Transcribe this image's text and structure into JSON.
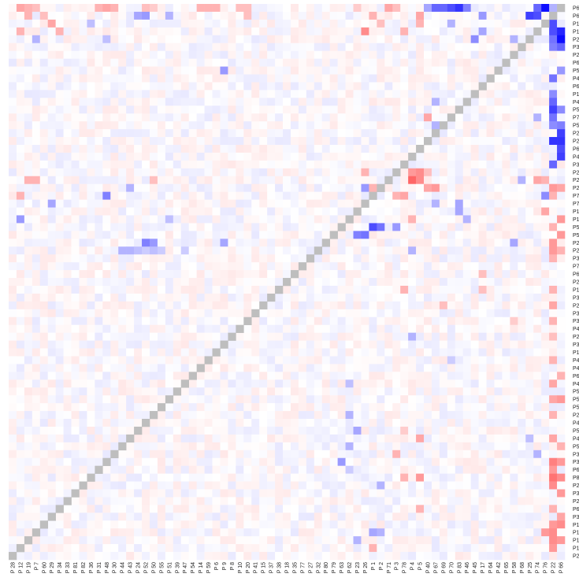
{
  "chart_data": {
    "type": "heatmap",
    "title": "",
    "xlabel": "",
    "ylabel": "",
    "legend": "none",
    "grid": false,
    "value_range": [
      -1,
      1
    ],
    "colors": {
      "negative": "#0000ff",
      "zero": "#ffffff",
      "positive": "#ff0000",
      "diagonal": "#bebebe"
    },
    "x_tick_labels": [
      "P 28",
      "P 12",
      "P 19",
      "P 7",
      "P 60",
      "P 29",
      "P 34",
      "P 33",
      "P 81",
      "P 82",
      "P 36",
      "P 31",
      "P 48",
      "P 30",
      "P 44",
      "P 43",
      "P 24",
      "P 52",
      "P 50",
      "P 55",
      "P 51",
      "P 39",
      "P 47",
      "P 54",
      "P 14",
      "P 59",
      "P 6",
      "P 9",
      "P 8",
      "P 10",
      "P 20",
      "P 41",
      "P 15",
      "P 37",
      "P 38",
      "P 18",
      "P 35",
      "P 77",
      "P 27",
      "P 32",
      "P 80",
      "P 79",
      "P 63",
      "P 62",
      "P 23",
      "P 26",
      "P 1",
      "P 2",
      "P 71",
      "P 3",
      "P 78",
      "P 4",
      "P 5",
      "P 40",
      "P 67",
      "P 69",
      "P 70",
      "P 83",
      "P 46",
      "P 45",
      "P 17",
      "P 64",
      "P 42",
      "P 65",
      "P 58",
      "P 68",
      "P 25",
      "P 74",
      "P 76",
      "P 22",
      "P 66"
    ],
    "right_tick_labels": [
      "P6",
      "P6",
      "P1",
      "P1",
      "P2",
      "P3",
      "P2",
      "P6",
      "P5",
      "P4",
      "P6",
      "P1",
      "P4",
      "P5",
      "P7",
      "P5",
      "P2",
      "P2",
      "P6",
      "P4",
      "P3",
      "P2",
      "P2",
      "P2",
      "P7",
      "P7",
      "P1",
      "P1",
      "P5",
      "P5",
      "P2",
      "P2",
      "P3",
      "P7",
      "P6",
      "P2",
      "P1",
      "P3",
      "P2",
      "P3",
      "P3",
      "P4",
      "P2",
      "P3",
      "P1",
      "P4",
      "P4",
      "P6",
      "P4",
      "P5",
      "P5",
      "P5",
      "P2",
      "P4",
      "P5",
      "P4",
      "P5",
      "P3",
      "P3",
      "P6",
      "P8",
      "P2",
      "P3",
      "P2",
      "P6",
      "P3",
      "P1",
      "P1",
      "P1",
      "P1",
      "P2"
    ],
    "cells": [
      [
        0,
        1,
        0.35
      ],
      [
        0,
        2,
        0.3
      ],
      [
        0,
        3,
        0.25
      ],
      [
        0,
        11,
        0.3
      ],
      [
        0,
        12,
        0.35
      ],
      [
        0,
        13,
        0.3
      ],
      [
        0,
        17,
        0.25
      ],
      [
        0,
        18,
        0.2
      ],
      [
        0,
        24,
        0.3
      ],
      [
        0,
        25,
        0.3
      ],
      [
        0,
        26,
        0.3
      ],
      [
        0,
        29,
        0.25
      ],
      [
        0,
        30,
        0.25
      ],
      [
        0,
        44,
        0.2
      ],
      [
        0,
        48,
        0.35
      ],
      [
        0,
        49,
        0.25
      ],
      [
        0,
        53,
        -0.35
      ],
      [
        0,
        54,
        -0.6
      ],
      [
        0,
        55,
        -0.6
      ],
      [
        0,
        56,
        -0.7
      ],
      [
        0,
        57,
        -0.8
      ],
      [
        0,
        58,
        -0.5
      ],
      [
        0,
        67,
        -0.6
      ],
      [
        0,
        68,
        -0.95
      ],
      [
        0,
        69,
        -0.3
      ],
      [
        1,
        2,
        0.3
      ],
      [
        1,
        4,
        0.25
      ],
      [
        1,
        16,
        -0.35
      ],
      [
        1,
        17,
        -0.4
      ],
      [
        1,
        20,
        -0.3
      ],
      [
        1,
        30,
        0.25
      ],
      [
        1,
        46,
        0.3
      ],
      [
        1,
        52,
        0.35
      ],
      [
        1,
        60,
        -0.4
      ],
      [
        1,
        66,
        -0.75
      ],
      [
        1,
        67,
        -0.7
      ],
      [
        1,
        69,
        -0.5
      ],
      [
        2,
        5,
        0.35
      ],
      [
        2,
        10,
        -0.25
      ],
      [
        2,
        47,
        0.25
      ],
      [
        2,
        52,
        0.3
      ],
      [
        2,
        56,
        -0.3
      ],
      [
        2,
        68,
        -0.8
      ],
      [
        2,
        69,
        -0.7
      ],
      [
        3,
        1,
        0.3
      ],
      [
        3,
        6,
        0.3
      ],
      [
        3,
        45,
        0.45
      ],
      [
        3,
        50,
        0.3
      ],
      [
        3,
        60,
        -0.35
      ],
      [
        3,
        69,
        -0.7
      ],
      [
        3,
        70,
        -0.85
      ],
      [
        4,
        3,
        -0.3
      ],
      [
        4,
        12,
        -0.25
      ],
      [
        4,
        59,
        -0.45
      ],
      [
        4,
        64,
        -0.3
      ],
      [
        4,
        69,
        -0.55
      ],
      [
        4,
        70,
        -0.95
      ],
      [
        5,
        69,
        -0.5
      ],
      [
        5,
        70,
        -0.6
      ],
      [
        8,
        27,
        -0.4
      ],
      [
        8,
        70,
        -0.4
      ],
      [
        9,
        69,
        -0.55
      ],
      [
        11,
        69,
        -0.45
      ],
      [
        12,
        54,
        -0.3
      ],
      [
        12,
        69,
        -0.6
      ],
      [
        13,
        69,
        -0.75
      ],
      [
        13,
        70,
        -0.45
      ],
      [
        14,
        53,
        0.35
      ],
      [
        14,
        67,
        -0.3
      ],
      [
        14,
        69,
        -0.55
      ],
      [
        15,
        54,
        -0.3
      ],
      [
        15,
        69,
        -0.45
      ],
      [
        15,
        70,
        -0.5
      ],
      [
        16,
        70,
        -0.75
      ],
      [
        17,
        69,
        -0.8
      ],
      [
        17,
        70,
        -0.8
      ],
      [
        18,
        70,
        -0.7
      ],
      [
        19,
        70,
        -0.75
      ],
      [
        20,
        69,
        -0.6
      ],
      [
        21,
        51,
        0.4
      ],
      [
        21,
        52,
        0.45
      ],
      [
        21,
        45,
        0.3
      ],
      [
        21,
        53,
        0.25
      ],
      [
        22,
        2,
        0.3
      ],
      [
        22,
        3,
        0.3
      ],
      [
        22,
        18,
        0.25
      ],
      [
        22,
        51,
        0.6
      ],
      [
        22,
        52,
        0.45
      ],
      [
        22,
        65,
        -0.3
      ],
      [
        22,
        67,
        0.35
      ],
      [
        22,
        68,
        0.3
      ],
      [
        23,
        15,
        -0.3
      ],
      [
        23,
        45,
        -0.4
      ],
      [
        23,
        46,
        0.3
      ],
      [
        23,
        53,
        0.35
      ],
      [
        23,
        54,
        0.4
      ],
      [
        23,
        69,
        0.4
      ],
      [
        23,
        70,
        0.35
      ],
      [
        24,
        1,
        0.3
      ],
      [
        24,
        12,
        -0.5
      ],
      [
        24,
        49,
        0.3
      ],
      [
        24,
        50,
        0.35
      ],
      [
        24,
        68,
        -0.45
      ],
      [
        24,
        69,
        0.3
      ],
      [
        25,
        5,
        -0.35
      ],
      [
        25,
        54,
        -0.3
      ],
      [
        25,
        57,
        -0.35
      ],
      [
        26,
        57,
        -0.35
      ],
      [
        26,
        68,
        0.35
      ],
      [
        27,
        1,
        -0.4
      ],
      [
        27,
        20,
        -0.25
      ],
      [
        27,
        51,
        0.3
      ],
      [
        27,
        58,
        -0.3
      ],
      [
        27,
        70,
        0.4
      ],
      [
        28,
        46,
        -0.7
      ],
      [
        28,
        47,
        -0.55
      ],
      [
        28,
        49,
        -0.4
      ],
      [
        28,
        69,
        0.3
      ],
      [
        29,
        44,
        -0.5
      ],
      [
        29,
        45,
        -0.55
      ],
      [
        29,
        70,
        0.4
      ],
      [
        30,
        17,
        -0.5
      ],
      [
        30,
        18,
        -0.4
      ],
      [
        30,
        27,
        -0.35
      ],
      [
        30,
        64,
        -0.35
      ],
      [
        30,
        69,
        0.4
      ],
      [
        31,
        14,
        -0.3
      ],
      [
        31,
        15,
        -0.3
      ],
      [
        31,
        16,
        -0.25
      ],
      [
        31,
        17,
        -0.2
      ],
      [
        31,
        18,
        -0.25
      ],
      [
        31,
        19,
        -0.2
      ],
      [
        31,
        22,
        -0.2
      ],
      [
        31,
        51,
        -0.3
      ],
      [
        31,
        69,
        0.4
      ],
      [
        31,
        70,
        0.3
      ],
      [
        32,
        69,
        0.3
      ],
      [
        34,
        60,
        0.25
      ],
      [
        36,
        50,
        0.3
      ],
      [
        36,
        60,
        0.25
      ],
      [
        36,
        69,
        0.3
      ],
      [
        38,
        55,
        0.25
      ],
      [
        38,
        69,
        0.35
      ],
      [
        40,
        64,
        0.2
      ],
      [
        40,
        69,
        0.3
      ],
      [
        42,
        51,
        -0.3
      ],
      [
        42,
        69,
        0.25
      ],
      [
        45,
        56,
        -0.2
      ],
      [
        45,
        69,
        0.3
      ],
      [
        47,
        70,
        0.3
      ],
      [
        48,
        43,
        -0.25
      ],
      [
        48,
        69,
        0.35
      ],
      [
        50,
        69,
        0.35
      ],
      [
        50,
        70,
        0.4
      ],
      [
        52,
        43,
        -0.3
      ],
      [
        52,
        69,
        0.3
      ],
      [
        54,
        44,
        -0.35
      ],
      [
        54,
        50,
        0.2
      ],
      [
        55,
        52,
        0.35
      ],
      [
        55,
        66,
        -0.25
      ],
      [
        55,
        69,
        0.35
      ],
      [
        56,
        43,
        -0.3
      ],
      [
        56,
        70,
        0.3
      ],
      [
        57,
        49,
        0.3
      ],
      [
        57,
        67,
        -0.3
      ],
      [
        58,
        42,
        -0.4
      ],
      [
        58,
        69,
        0.5
      ],
      [
        58,
        70,
        0.4
      ],
      [
        59,
        43,
        -0.2
      ],
      [
        59,
        69,
        0.4
      ],
      [
        60,
        50,
        0.3
      ],
      [
        60,
        52,
        0.4
      ],
      [
        60,
        69,
        0.55
      ],
      [
        60,
        70,
        0.45
      ],
      [
        61,
        47,
        -0.3
      ],
      [
        61,
        69,
        0.45
      ],
      [
        62,
        70,
        0.4
      ],
      [
        64,
        52,
        0.3
      ],
      [
        64,
        69,
        0.3
      ],
      [
        65,
        70,
        0.35
      ],
      [
        66,
        69,
        0.4
      ],
      [
        66,
        70,
        0.45
      ],
      [
        67,
        46,
        -0.35
      ],
      [
        67,
        47,
        -0.3
      ],
      [
        67,
        68,
        0.4
      ],
      [
        67,
        69,
        0.45
      ],
      [
        68,
        44,
        -0.3
      ],
      [
        68,
        69,
        0.45
      ],
      [
        68,
        70,
        0.4
      ],
      [
        69,
        46,
        0.3
      ],
      [
        69,
        69,
        0.4
      ]
    ]
  }
}
